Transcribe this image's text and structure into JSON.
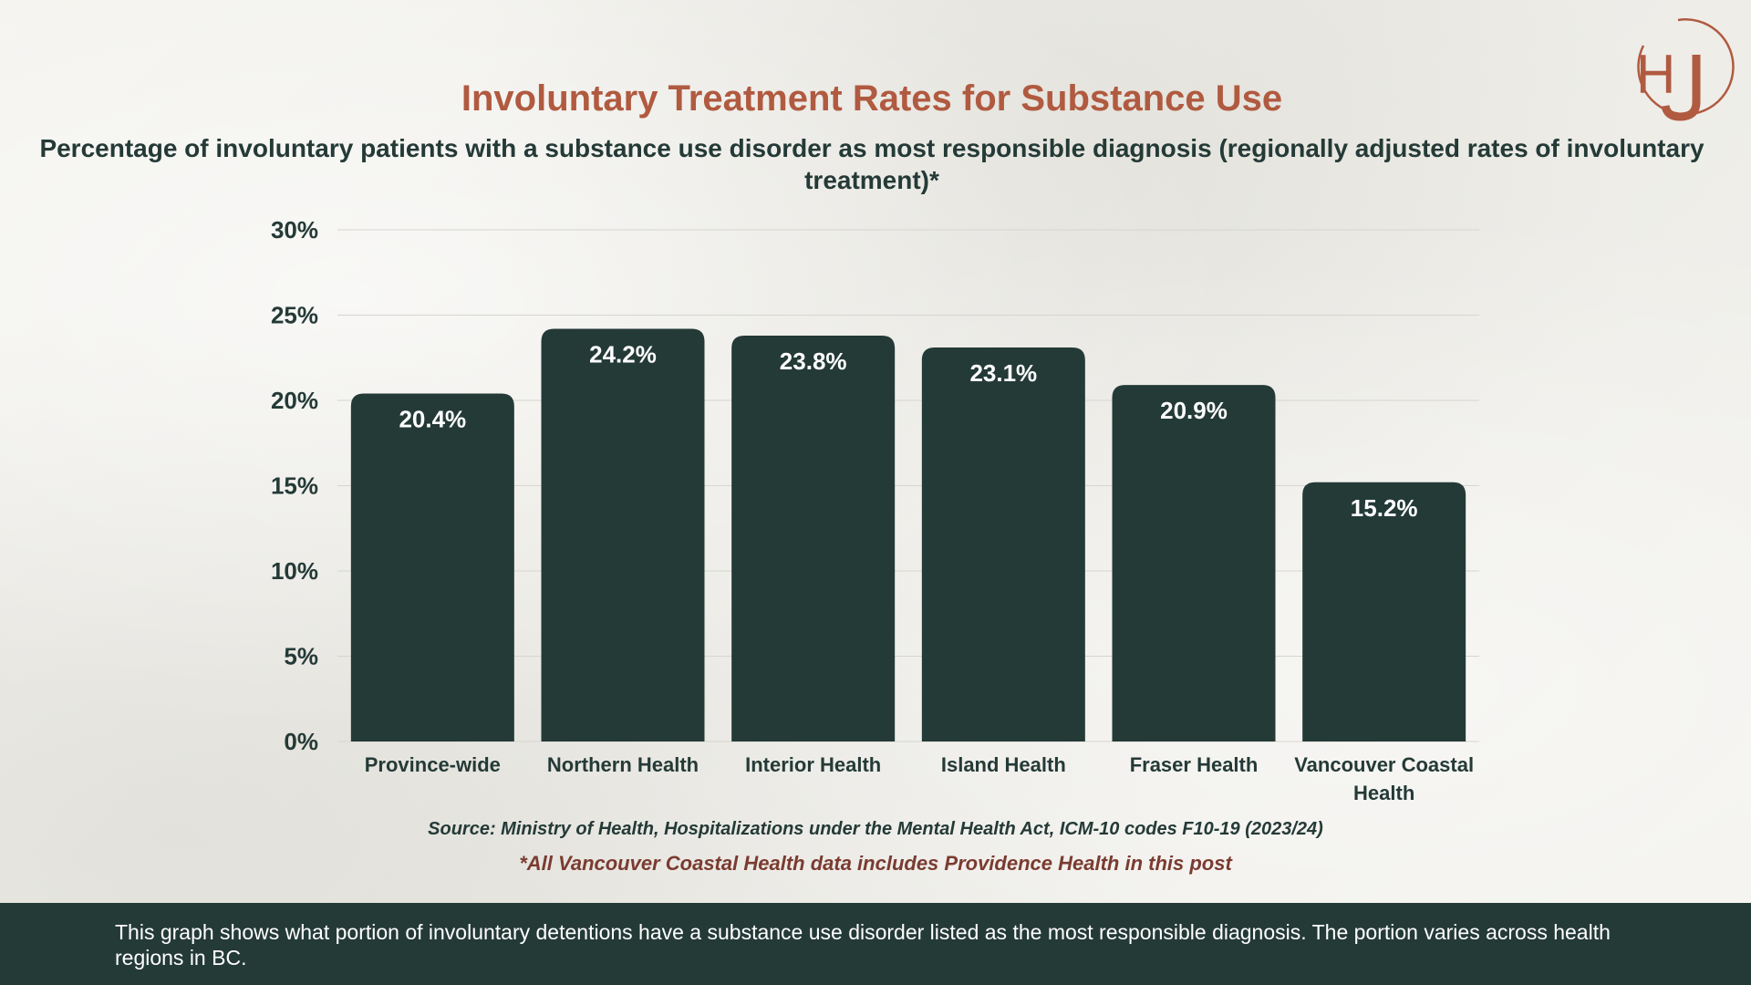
{
  "brand": {
    "logo_text": "HJ",
    "accent": "#b05a40",
    "dark": "#243a37"
  },
  "chart_data": {
    "type": "bar",
    "title": "Involuntary Treatment Rates for Substance Use",
    "subtitle": "Percentage of involuntary patients with a substance use disorder as most responsible diagnosis (regionally adjusted rates of involuntary treatment)*",
    "categories": [
      "Province-wide",
      "Northern Health",
      "Interior Health",
      "Island Health",
      "Fraser Health",
      "Vancouver Coastal Health"
    ],
    "values": [
      20.4,
      24.2,
      23.8,
      23.1,
      20.9,
      15.2
    ],
    "value_labels": [
      "20.4%",
      "24.2%",
      "23.8%",
      "23.1%",
      "20.9%",
      "15.2%"
    ],
    "ylim": [
      0,
      30
    ],
    "yticks": [
      0,
      5,
      10,
      15,
      20,
      25,
      30
    ],
    "ytick_labels": [
      "0%",
      "5%",
      "10%",
      "15%",
      "20%",
      "25%",
      "30%"
    ],
    "xlabel": "",
    "ylabel": "",
    "grid": true,
    "bar_color": "#243a37"
  },
  "source": "Source: Ministry of Health, Hospitalizations under the Mental Health Act, ICM-10 codes F10-19 (2023/24)",
  "note": "*All Vancouver Coastal Health data includes Providence Health in this post",
  "footer": {
    "description": "This graph shows what portion of involuntary detentions have a substance use disorder listed as the most responsible diagnosis. The portion varies across health regions in BC."
  }
}
